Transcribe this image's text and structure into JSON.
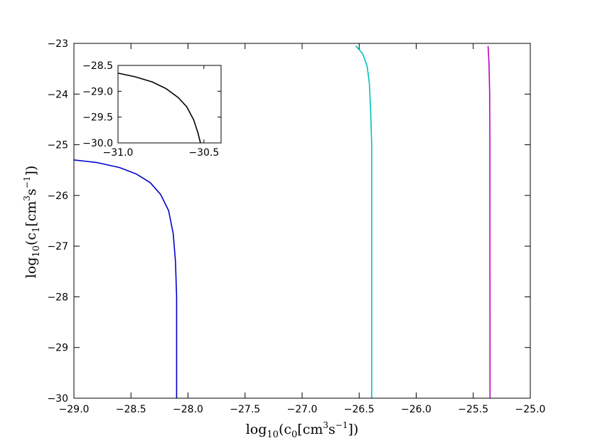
{
  "chart_data": [
    {
      "type": "line",
      "title": "",
      "xlabel": "log10(c0[cm3s−1])",
      "ylabel": "log10(c1[cm3s−1])",
      "xlim": [
        -29.0,
        -25.0
      ],
      "ylim": [
        -30,
        -23
      ],
      "xticks": [
        -29.0,
        -28.5,
        -28.0,
        -27.5,
        -27.0,
        -26.5,
        -26.0,
        -25.5,
        -25.0
      ],
      "xtick_labels": [
        "−29.0",
        "−28.5",
        "−28.0",
        "−27.5",
        "−27.0",
        "−26.5",
        "−26.0",
        "−25.5",
        "−25.0"
      ],
      "yticks": [
        -23,
        -24,
        -25,
        -26,
        -27,
        -28,
        -29,
        -30
      ],
      "ytick_labels": [
        "−23",
        "−24",
        "−25",
        "−26",
        "−27",
        "−28",
        "−29",
        "−30"
      ],
      "grid": false,
      "series": [
        {
          "color": "#0000cc",
          "points": [
            [
              -29.0,
              -25.3
            ],
            [
              -28.8,
              -25.35
            ],
            [
              -28.6,
              -25.45
            ],
            [
              -28.45,
              -25.58
            ],
            [
              -28.33,
              -25.75
            ],
            [
              -28.24,
              -25.98
            ],
            [
              -28.17,
              -26.3
            ],
            [
              -28.13,
              -26.75
            ],
            [
              -28.11,
              -27.3
            ],
            [
              -28.1,
              -28.0
            ],
            [
              -28.1,
              -30.0
            ]
          ]
        },
        {
          "color": "#00bfbf",
          "points": [
            [
              -26.53,
              -23.05
            ],
            [
              -26.47,
              -23.2
            ],
            [
              -26.43,
              -23.45
            ],
            [
              -26.41,
              -23.8
            ],
            [
              -26.4,
              -24.3
            ],
            [
              -26.39,
              -25.0
            ],
            [
              -26.39,
              -30.0
            ]
          ]
        },
        {
          "color": "#bf00bf",
          "points": [
            [
              -25.37,
              -23.05
            ],
            [
              -25.362,
              -23.4
            ],
            [
              -25.356,
              -24.0
            ],
            [
              -25.354,
              -25.0
            ],
            [
              -25.353,
              -30.0
            ]
          ]
        }
      ]
    },
    {
      "type": "line",
      "title": "",
      "xlabel": "",
      "ylabel": "",
      "xlim": [
        -31.0,
        -30.4
      ],
      "ylim": [
        -30.0,
        -28.5
      ],
      "xticks": [
        -31.0,
        -30.5
      ],
      "xtick_labels": [
        "−31.0",
        "−30.5"
      ],
      "yticks": [
        -28.5,
        -29.0,
        -29.5,
        -30.0
      ],
      "ytick_labels": [
        "−28.5",
        "−29.0",
        "−29.5",
        "−30.0"
      ],
      "grid": false,
      "series": [
        {
          "color": "#000000",
          "points": [
            [
              -31.0,
              -28.65
            ],
            [
              -30.9,
              -28.72
            ],
            [
              -30.8,
              -28.82
            ],
            [
              -30.72,
              -28.95
            ],
            [
              -30.65,
              -29.12
            ],
            [
              -30.6,
              -29.3
            ],
            [
              -30.56,
              -29.55
            ],
            [
              -30.535,
              -29.8
            ],
            [
              -30.52,
              -30.0
            ]
          ]
        }
      ]
    }
  ]
}
